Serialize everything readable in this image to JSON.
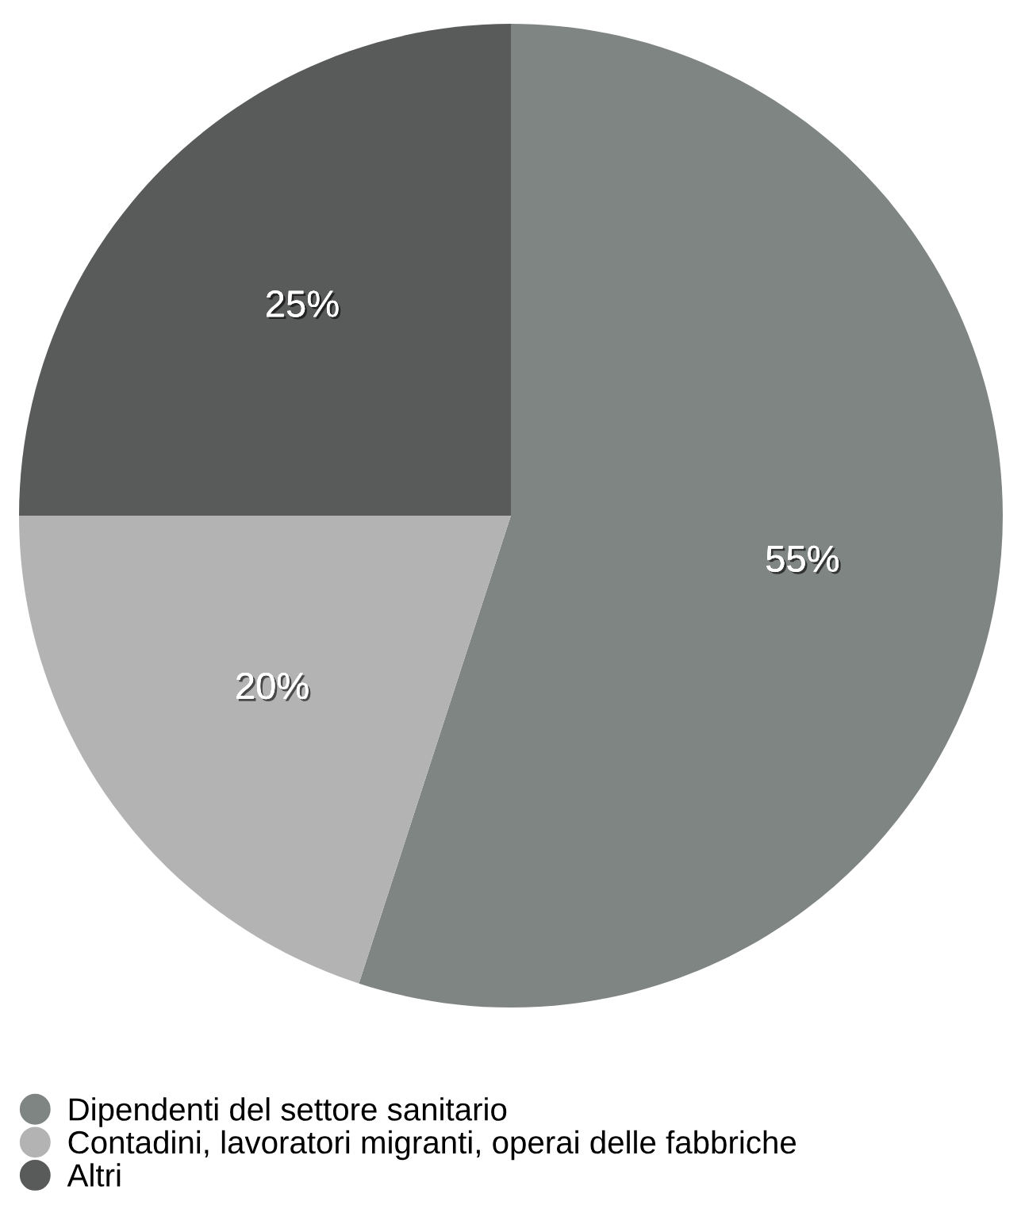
{
  "chart_data": {
    "type": "pie",
    "categories": [
      "Dipendenti del settore sanitario",
      "Contadini, lavoratori migranti, operai delle fabbriche",
      "Altri"
    ],
    "values": [
      55,
      20,
      25
    ],
    "colors": [
      "#7f8582",
      "#b3b3b3",
      "#585b59"
    ],
    "value_labels": [
      "55%",
      "20%",
      "25%"
    ],
    "legend": "bottom left"
  }
}
